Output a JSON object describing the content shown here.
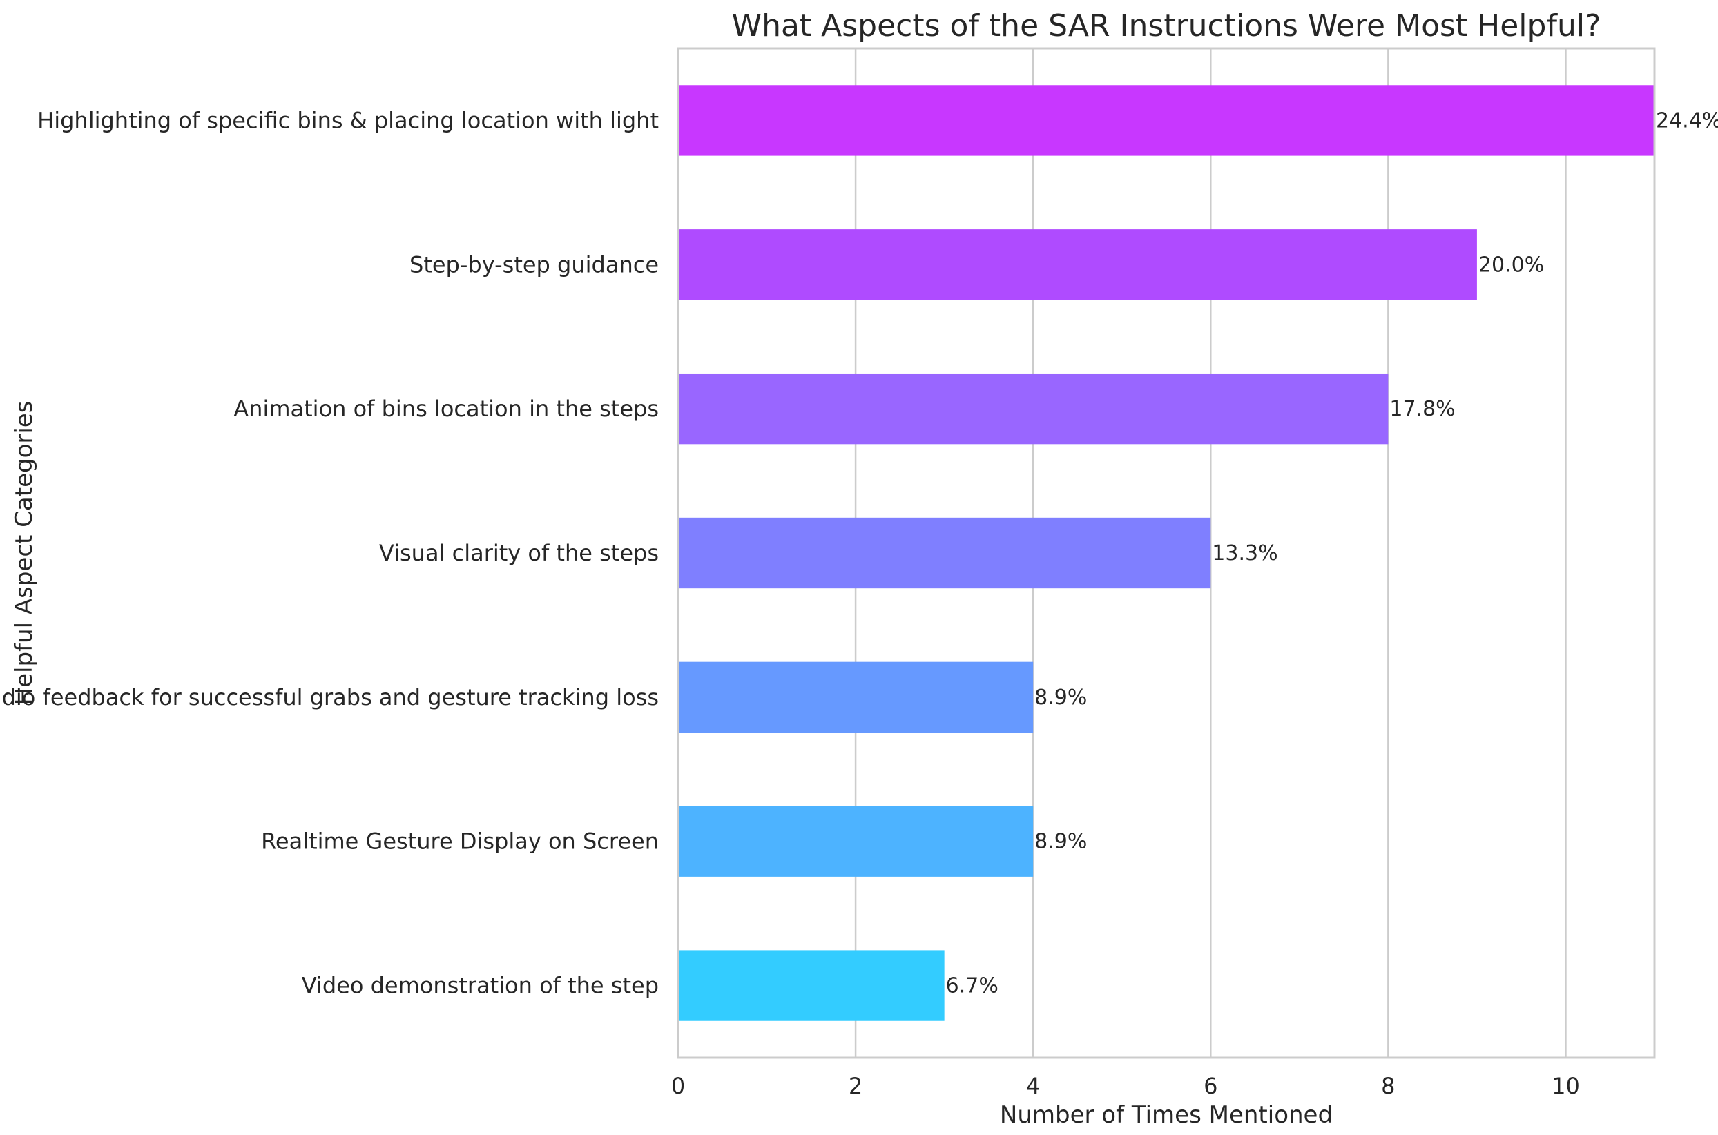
{
  "chart_data": {
    "type": "bar",
    "orientation": "horizontal",
    "title": "What Aspects of the SAR Instructions Were Most Helpful?",
    "xlabel": "Number of Times Mentioned",
    "ylabel": "Helpful Aspect Categories",
    "xlim": [
      0,
      11
    ],
    "xticks": [
      0,
      2,
      4,
      6,
      8,
      10
    ],
    "grid": "vertical",
    "categories": [
      "Highlighting of specific bins & placing location with light",
      "Step-by-step guidance",
      "Animation of bins location in the steps",
      "Visual clarity of the steps",
      "Audio feedback for successful grabs and gesture tracking loss",
      "Realtime Gesture Display on Screen",
      "Video demonstration of the step"
    ],
    "values": [
      11,
      9,
      8,
      6,
      4,
      4,
      3
    ],
    "data_labels": [
      "24.4%",
      "20.0%",
      "17.8%",
      "13.3%",
      "8.9%",
      "8.9%",
      "6.7%"
    ],
    "colors": [
      "#c837ff",
      "#af4bff",
      "#9966ff",
      "#7f7fff",
      "#6699ff",
      "#4db3ff",
      "#33ccff"
    ]
  }
}
